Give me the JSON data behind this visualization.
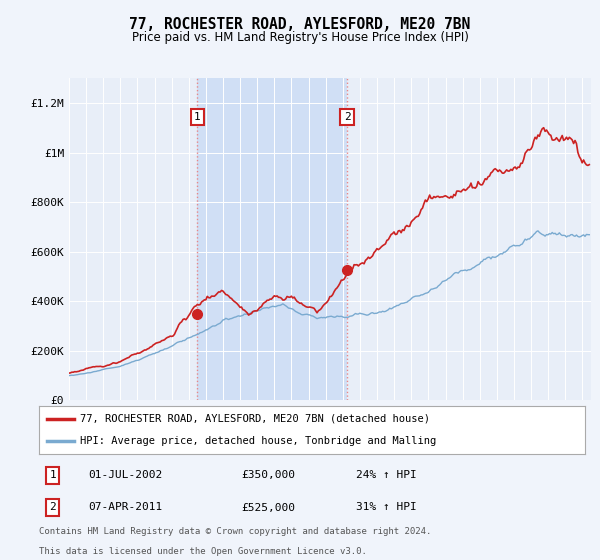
{
  "title": "77, ROCHESTER ROAD, AYLESFORD, ME20 7BN",
  "subtitle": "Price paid vs. HM Land Registry's House Price Index (HPI)",
  "background_color": "#f0f4fb",
  "plot_bg_color": "#e8eef8",
  "highlight_color": "#d0dff5",
  "ylabel_ticks": [
    "£0",
    "£200K",
    "£400K",
    "£600K",
    "£800K",
    "£1M",
    "£1.2M"
  ],
  "ytick_values": [
    0,
    200000,
    400000,
    600000,
    800000,
    1000000,
    1200000
  ],
  "ylim": [
    0,
    1300000
  ],
  "xlim_start": 1995.0,
  "xlim_end": 2025.5,
  "legend_line1": "77, ROCHESTER ROAD, AYLESFORD, ME20 7BN (detached house)",
  "legend_line2": "HPI: Average price, detached house, Tonbridge and Malling",
  "sale1_date": "01-JUL-2002",
  "sale1_price": "£350,000",
  "sale1_hpi": "24% ↑ HPI",
  "sale2_date": "07-APR-2011",
  "sale2_price": "£525,000",
  "sale2_hpi": "31% ↑ HPI",
  "footnote1": "Contains HM Land Registry data © Crown copyright and database right 2024.",
  "footnote2": "This data is licensed under the Open Government Licence v3.0.",
  "sale1_x": 2002.5,
  "sale1_y": 350000,
  "sale2_x": 2011.25,
  "sale2_y": 525000,
  "red_color": "#cc2222",
  "blue_color": "#7aaad0",
  "vline_color": "#e88888"
}
